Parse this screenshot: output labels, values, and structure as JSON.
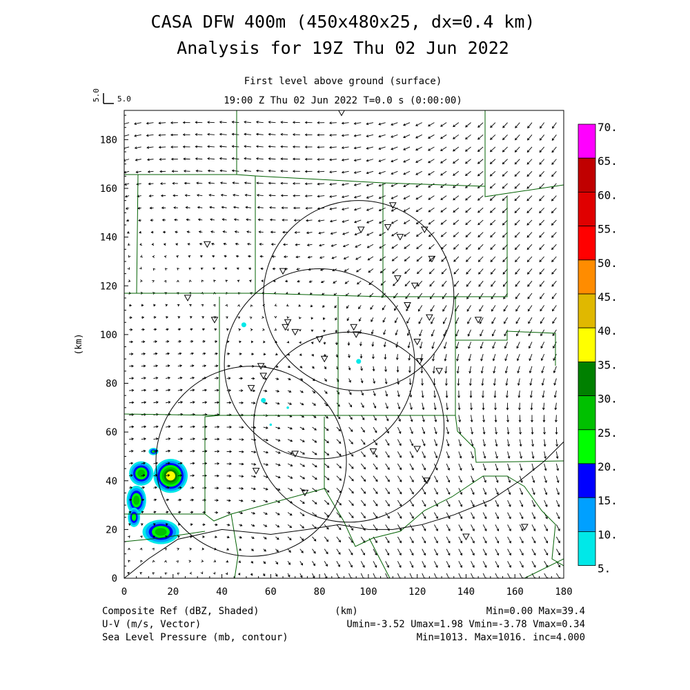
{
  "title": {
    "line1": "CASA DFW 400m (450x480x25, dx=0.4 km)",
    "line2": "Analysis for 19Z Thu 02 Jun 2022"
  },
  "subtitle": {
    "level": "First level above ground (surface)",
    "time": "19:00 Z Thu 02 Jun 2022    T=0.0 s (0:00:00)"
  },
  "vector_ref": {
    "rotated_label": "5.0",
    "label": "5.0"
  },
  "footer": {
    "left": [
      "Composite Ref (dBZ, Shaded)",
      "U-V (m/s, Vector)",
      "Sea Level Pressure (mb, contour)"
    ],
    "center": "(km)",
    "right": [
      "Min=0.00 Max=39.4",
      "Umin=-3.52 Umax=1.98 Vmin=-3.78 Vmax=0.34",
      "Min=1013. Max=1016. inc=4.000"
    ]
  },
  "chart_data": {
    "type": "heatmap",
    "xlabel": "",
    "ylabel": "(km)",
    "xlim": [
      0,
      180
    ],
    "ylim": [
      0,
      192
    ],
    "xticks": [
      0,
      20,
      40,
      60,
      80,
      100,
      120,
      140,
      160,
      180
    ],
    "yticks": [
      0,
      20,
      40,
      60,
      80,
      100,
      120,
      140,
      160,
      180
    ],
    "colorbar": {
      "labels": [
        "70.",
        "65.",
        "60.",
        "55.",
        "50.",
        "45.",
        "40.",
        "35.",
        "30.",
        "25.",
        "20.",
        "15.",
        "10.",
        "5."
      ],
      "bins": [
        {
          "from": 65,
          "to": 70,
          "color": "#ff00ff"
        },
        {
          "from": 60,
          "to": 65,
          "color": "#c00000"
        },
        {
          "from": 55,
          "to": 60,
          "color": "#e00000"
        },
        {
          "from": 50,
          "to": 55,
          "color": "#ff0000"
        },
        {
          "from": 45,
          "to": 50,
          "color": "#ff8c00"
        },
        {
          "from": 40,
          "to": 45,
          "color": "#e0b800"
        },
        {
          "from": 35,
          "to": 40,
          "color": "#ffff00"
        },
        {
          "from": 30,
          "to": 35,
          "color": "#008000"
        },
        {
          "from": 25,
          "to": 30,
          "color": "#00c000"
        },
        {
          "from": 20,
          "to": 25,
          "color": "#00ff00"
        },
        {
          "from": 15,
          "to": 20,
          "color": "#0000ff"
        },
        {
          "from": 10,
          "to": 15,
          "color": "#00a0ff"
        },
        {
          "from": 5,
          "to": 10,
          "color": "#00e8e8"
        }
      ]
    },
    "radar_rings": [
      {
        "center": [
          96,
          116
        ],
        "radius": 39
      },
      {
        "center": [
          80,
          88
        ],
        "radius": 39
      },
      {
        "center": [
          92,
          62
        ],
        "radius": 39
      },
      {
        "center": [
          52,
          48
        ],
        "radius": 39
      }
    ],
    "stations": [
      [
        89,
        191
      ],
      [
        110,
        153
      ],
      [
        97,
        143
      ],
      [
        108,
        144
      ],
      [
        113,
        140
      ],
      [
        123,
        143
      ],
      [
        126,
        131
      ],
      [
        65,
        126
      ],
      [
        112,
        123
      ],
      [
        119,
        120
      ],
      [
        34,
        137
      ],
      [
        26,
        115
      ],
      [
        37,
        106
      ],
      [
        116,
        112
      ],
      [
        125,
        107
      ],
      [
        145,
        106
      ],
      [
        67,
        105
      ],
      [
        66,
        103
      ],
      [
        70,
        101
      ],
      [
        94,
        103
      ],
      [
        95,
        100
      ],
      [
        80,
        98
      ],
      [
        120,
        97
      ],
      [
        82,
        90
      ],
      [
        121,
        89
      ],
      [
        129,
        85
      ],
      [
        56,
        87
      ],
      [
        57,
        83
      ],
      [
        52,
        78
      ],
      [
        70,
        51
      ],
      [
        102,
        52
      ],
      [
        120,
        53
      ],
      [
        54,
        44
      ],
      [
        124,
        40
      ],
      [
        74,
        35
      ],
      [
        140,
        17
      ],
      [
        164,
        21
      ]
    ],
    "reflectivity_cells": [
      {
        "center": [
          7,
          43
        ],
        "size": [
          10,
          10
        ],
        "max_dbz": 27
      },
      {
        "center": [
          19,
          42
        ],
        "size": [
          14,
          14
        ],
        "max_dbz": 39.4
      },
      {
        "center": [
          5,
          32
        ],
        "size": [
          8,
          12
        ],
        "max_dbz": 27
      },
      {
        "center": [
          4,
          25
        ],
        "size": [
          5,
          8
        ],
        "max_dbz": 22
      },
      {
        "center": [
          15,
          19
        ],
        "size": [
          15,
          10
        ],
        "max_dbz": 30
      },
      {
        "center": [
          12,
          52
        ],
        "size": [
          4,
          3
        ],
        "max_dbz": 22
      },
      {
        "center": [
          49,
          104
        ],
        "size": [
          2,
          2
        ],
        "max_dbz": 10
      },
      {
        "center": [
          57,
          73
        ],
        "size": [
          2,
          2
        ],
        "max_dbz": 8
      },
      {
        "center": [
          67,
          70
        ],
        "size": [
          1,
          1
        ],
        "max_dbz": 7
      },
      {
        "center": [
          60,
          63
        ],
        "size": [
          1,
          1
        ],
        "max_dbz": 7
      },
      {
        "center": [
          96,
          89
        ],
        "size": [
          2,
          2
        ],
        "max_dbz": 8
      }
    ],
    "pressure_contours": [
      {
        "value": 1016,
        "points": [
          [
            0,
            0
          ],
          [
            10,
            8
          ],
          [
            22,
            16
          ],
          [
            40,
            20
          ],
          [
            60,
            18
          ],
          [
            75,
            20
          ],
          [
            88,
            22
          ],
          [
            100,
            20
          ],
          [
            110,
            20
          ],
          [
            122,
            22
          ],
          [
            135,
            26
          ],
          [
            150,
            32
          ],
          [
            162,
            40
          ],
          [
            172,
            48
          ],
          [
            180,
            56
          ]
        ]
      }
    ],
    "wind_summary": {
      "umin": -3.52,
      "umax": 1.98,
      "vmin": -3.78,
      "vmax": 0.34
    }
  }
}
